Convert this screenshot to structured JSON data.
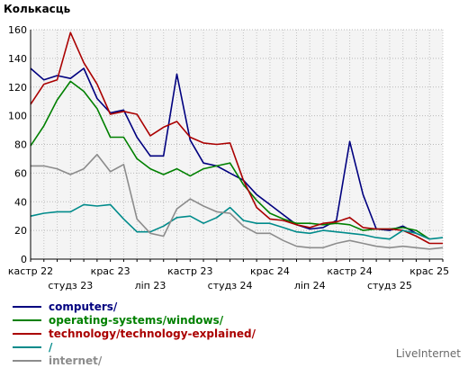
{
  "brand": "LiveInternet",
  "chart_data": {
    "type": "line",
    "ylabel": "Колькасць",
    "ylim": [
      0,
      160
    ],
    "yticks": [
      0,
      20,
      40,
      60,
      80,
      100,
      120,
      140,
      160
    ],
    "x_labels": [
      {
        "i": 0,
        "label": "кастр 22",
        "row": 1
      },
      {
        "i": 3,
        "label": "студз 23",
        "row": 2
      },
      {
        "i": 6,
        "label": "крас 23",
        "row": 1
      },
      {
        "i": 9,
        "label": "ліп 23",
        "row": 2
      },
      {
        "i": 12,
        "label": "кастр 23",
        "row": 1
      },
      {
        "i": 15,
        "label": "студз 24",
        "row": 2
      },
      {
        "i": 18,
        "label": "крас 24",
        "row": 1
      },
      {
        "i": 21,
        "label": "ліп 24",
        "row": 2
      },
      {
        "i": 24,
        "label": "кастр 24",
        "row": 1
      },
      {
        "i": 27,
        "label": "студз 25",
        "row": 2
      },
      {
        "i": 30,
        "label": "крас 25",
        "row": 1
      }
    ],
    "grid": true,
    "legend_position": "bottom-left",
    "series": [
      {
        "name": "computers/",
        "color": "#00007f",
        "values": [
          133,
          125,
          128,
          126,
          133,
          112,
          102,
          104,
          85,
          72,
          72,
          129,
          83,
          67,
          65,
          60,
          55,
          45,
          38,
          31,
          24,
          21,
          22,
          27,
          82,
          45,
          21,
          20,
          23,
          18,
          14
        ]
      },
      {
        "name": "operating-systems/windows/",
        "color": "#008000",
        "values": [
          79,
          93,
          111,
          124,
          117,
          105,
          85,
          85,
          70,
          63,
          59,
          63,
          58,
          63,
          65,
          67,
          52,
          41,
          32,
          28,
          25,
          25,
          24,
          25,
          24,
          20,
          21,
          21,
          22,
          20,
          14
        ]
      },
      {
        "name": "technology/technology-explained/",
        "color": "#aa0000",
        "values": [
          108,
          122,
          125,
          158,
          137,
          122,
          101,
          103,
          101,
          86,
          92,
          96,
          85,
          81,
          80,
          81,
          55,
          36,
          28,
          27,
          24,
          22,
          25,
          26,
          29,
          22,
          21,
          21,
          20,
          16,
          11,
          11
        ]
      },
      {
        "name": "/",
        "color": "#008b8b",
        "values": [
          30,
          32,
          33,
          33,
          38,
          37,
          38,
          28,
          19,
          19,
          23,
          29,
          30,
          25,
          29,
          36,
          27,
          25,
          25,
          22,
          19,
          18,
          20,
          19,
          18,
          17,
          15,
          14,
          20,
          18,
          14,
          15
        ]
      },
      {
        "name": "internet/",
        "color": "#8c8c8c",
        "values": [
          65,
          65,
          63,
          59,
          63,
          73,
          61,
          66,
          28,
          18,
          16,
          35,
          42,
          37,
          33,
          32,
          23,
          18,
          18,
          13,
          9,
          8,
          8,
          11,
          13,
          11,
          9,
          8,
          9,
          8,
          7,
          8
        ]
      }
    ]
  }
}
